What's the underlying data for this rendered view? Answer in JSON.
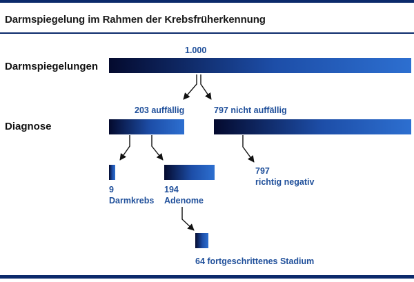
{
  "header": {
    "title": "Darmspiegelung im Rahmen der Krebsfrüherkennung"
  },
  "rows": {
    "row1_label": "Darmspiegelungen",
    "row2_label": "Diagnose"
  },
  "values": {
    "total": "1.000",
    "auffaellig": "203 auffällig",
    "nicht_auffaellig": "797 nicht auffällig",
    "darmkrebs_count": "9",
    "darmkrebs_label": "Darmkrebs",
    "adenome_count": "194",
    "adenome_label": "Adenome",
    "fortgeschritten": "64 fortgeschrittenes Stadium",
    "richtig_count": "797",
    "richtig_label": "richtig negativ"
  },
  "colors": {
    "bar_dark": "#040a2e",
    "bar_light": "#2d6fd0",
    "label_blue": "#1f4f9a",
    "rule": "#0b2a6b"
  }
}
